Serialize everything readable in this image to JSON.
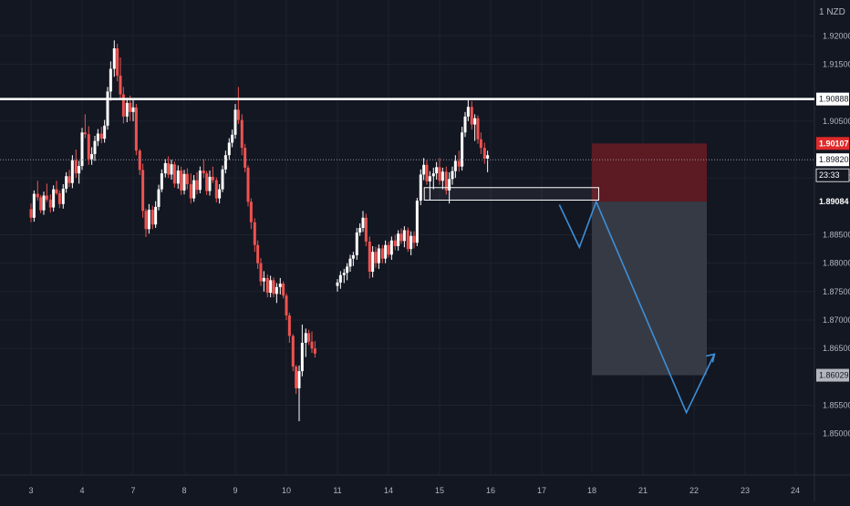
{
  "app": {
    "currency": "1 NZD"
  },
  "colors": {
    "background": "#131722",
    "grid": "#1e222d",
    "up": "#ffffff",
    "down": "#ef5350",
    "resistance_line": "#ffffff",
    "stop_zone": "#5c1a22",
    "target_zone": "#363a45",
    "projection": "#3d8fd8",
    "current_price_tag": "#ffffff",
    "stop_tag": "#e02a2a",
    "entry_tag": "#ffffff",
    "target_tag": "#b2b5be"
  },
  "chart_data": {
    "type": "candlestick",
    "title": "",
    "price_axis": {
      "ylim": [
        1.8445,
        1.9247
      ],
      "ticks": [
        "1.92000",
        "1.91500",
        "1.90500",
        "1.89500",
        "1.88500",
        "1.88000",
        "1.87500",
        "1.87000",
        "1.86500",
        "1.85500",
        "1.85000"
      ]
    },
    "time_axis": {
      "ticks": [
        "3",
        "4",
        "7",
        "8",
        "9",
        "10",
        "11",
        "14",
        "15",
        "16",
        "17",
        "18",
        "21",
        "22",
        "23",
        "24"
      ]
    },
    "grid": true,
    "legend": "none",
    "price_tags": [
      {
        "name": "resistance",
        "value": "1.90888"
      },
      {
        "name": "stop",
        "value": "1.90107"
      },
      {
        "name": "current",
        "value": "1.89820"
      },
      {
        "name": "countdown",
        "value": "23:33"
      },
      {
        "name": "entry",
        "value": "1.89084"
      },
      {
        "name": "target",
        "value": "1.86029"
      }
    ],
    "levels": {
      "resistance": 1.90888,
      "current": 1.8982,
      "stop": 1.90107,
      "entry": 1.89084,
      "target": 1.86029
    },
    "support_box": {
      "from_day": "14.7",
      "to_day": "18.4",
      "high": 1.8933,
      "low": 1.8911
    },
    "position_box": {
      "from_day": "18.0",
      "to_day": "22.25"
    },
    "projection_path": [
      {
        "day": 17.35,
        "price": 1.8903
      },
      {
        "day": 17.75,
        "price": 1.8828
      },
      {
        "day": 18.25,
        "price": 1.8908
      },
      {
        "day": 21.85,
        "price": 1.8537
      },
      {
        "day": 22.4,
        "price": 1.864
      }
    ],
    "candles": [
      [
        3.0,
        1.8895,
        1.8905,
        1.8872,
        1.888
      ],
      [
        3.06,
        1.888,
        1.8928,
        1.8873,
        1.8922
      ],
      [
        3.13,
        1.8922,
        1.8945,
        1.891,
        1.8916
      ],
      [
        3.19,
        1.8916,
        1.892,
        1.8888,
        1.8893
      ],
      [
        3.25,
        1.8893,
        1.8926,
        1.8885,
        1.8919
      ],
      [
        3.31,
        1.8919,
        1.894,
        1.8908,
        1.8912
      ],
      [
        3.38,
        1.8912,
        1.8921,
        1.8889,
        1.8898
      ],
      [
        3.44,
        1.8898,
        1.8937,
        1.8891,
        1.893
      ],
      [
        3.5,
        1.893,
        1.8945,
        1.892,
        1.8923
      ],
      [
        3.56,
        1.8923,
        1.8928,
        1.8897,
        1.8904
      ],
      [
        3.63,
        1.8904,
        1.8939,
        1.8896,
        1.8931
      ],
      [
        3.69,
        1.8931,
        1.896,
        1.8924,
        1.8953
      ],
      [
        3.75,
        1.8953,
        1.8964,
        1.8934,
        1.8941
      ],
      [
        3.81,
        1.8941,
        1.899,
        1.8932,
        1.8981
      ],
      [
        3.88,
        1.8981,
        1.9,
        1.895,
        1.8958
      ],
      [
        3.94,
        1.8958,
        1.898,
        1.894,
        1.8971
      ],
      [
        4.0,
        1.8971,
        1.9038,
        1.8964,
        1.903
      ],
      [
        4.06,
        1.903,
        1.9062,
        1.902,
        1.9027
      ],
      [
        4.13,
        1.9027,
        1.9041,
        1.8973,
        1.8983
      ],
      [
        4.19,
        1.8983,
        1.9004,
        1.8973,
        1.8992
      ],
      [
        4.25,
        1.8992,
        1.9024,
        1.898,
        1.9015
      ],
      [
        4.31,
        1.9015,
        1.9036,
        1.9006,
        1.9028
      ],
      [
        4.38,
        1.9028,
        1.904,
        1.9011,
        1.9019
      ],
      [
        4.44,
        1.9019,
        1.9052,
        1.9012,
        1.9042
      ],
      [
        4.5,
        1.9042,
        1.911,
        1.9035,
        1.9102
      ],
      [
        4.56,
        1.9102,
        1.9155,
        1.9086,
        1.9142
      ],
      [
        4.63,
        1.9142,
        1.9192,
        1.9128,
        1.9178
      ],
      [
        4.69,
        1.9178,
        1.9186,
        1.912,
        1.913
      ],
      [
        4.75,
        1.913,
        1.9162,
        1.909,
        1.9097
      ],
      [
        4.81,
        1.9097,
        1.911,
        1.9046,
        1.9058
      ],
      [
        4.88,
        1.9058,
        1.9091,
        1.9048,
        1.9082
      ],
      [
        4.94,
        1.9082,
        1.9095,
        1.905,
        1.9066
      ],
      [
        5.0,
        1.9066,
        1.909,
        1.905,
        1.9074
      ],
      [
        5.06,
        1.9074,
        1.908,
        1.899,
        1.8998
      ],
      [
        5.13,
        1.8998,
        1.9001,
        1.8955,
        1.8964
      ],
      [
        5.19,
        1.8964,
        1.8975,
        1.888,
        1.8892
      ],
      [
        5.25,
        1.8892,
        1.8896,
        1.8846,
        1.886
      ],
      [
        5.31,
        1.886,
        1.8904,
        1.8852,
        1.8894
      ],
      [
        5.38,
        1.8894,
        1.8901,
        1.886,
        1.8868
      ],
      [
        5.44,
        1.8868,
        1.8909,
        1.8862,
        1.8899
      ],
      [
        5.5,
        1.8899,
        1.8938,
        1.8893,
        1.893
      ],
      [
        5.56,
        1.893,
        1.8965,
        1.8925,
        1.8958
      ],
      [
        5.63,
        1.8958,
        1.8983,
        1.8951,
        1.8976
      ],
      [
        5.69,
        1.8976,
        1.8988,
        1.895,
        1.8956
      ],
      [
        5.75,
        1.8956,
        1.8982,
        1.8947,
        1.8974
      ],
      [
        5.81,
        1.8974,
        1.8979,
        1.8933,
        1.894
      ],
      [
        5.88,
        1.894,
        1.8972,
        1.8931,
        1.8963
      ],
      [
        5.94,
        1.8963,
        1.897,
        1.892,
        1.8928
      ],
      [
        6.0,
        1.8928,
        1.8964,
        1.8921,
        1.8957
      ],
      [
        6.06,
        1.8957,
        1.8967,
        1.893,
        1.8939
      ],
      [
        6.13,
        1.8939,
        1.8958,
        1.8905,
        1.8914
      ],
      [
        6.19,
        1.8914,
        1.8955,
        1.8908,
        1.8946
      ],
      [
        6.25,
        1.8946,
        1.896,
        1.8921,
        1.8929
      ],
      [
        6.31,
        1.8929,
        1.897,
        1.8923,
        1.8963
      ],
      [
        6.38,
        1.8963,
        1.8983,
        1.895,
        1.8958
      ],
      [
        6.44,
        1.8958,
        1.8962,
        1.892,
        1.8927
      ],
      [
        6.5,
        1.8927,
        1.8963,
        1.8919,
        1.8952
      ],
      [
        6.56,
        1.8952,
        1.897,
        1.8941,
        1.8946
      ],
      [
        6.63,
        1.8946,
        1.8951,
        1.8907,
        1.8914
      ],
      [
        6.69,
        1.8914,
        1.8939,
        1.8905,
        1.893
      ],
      [
        6.75,
        1.893,
        1.8972,
        1.8925,
        1.8965
      ],
      [
        6.81,
        1.8965,
        1.8998,
        1.8958,
        1.899
      ],
      [
        6.88,
        1.899,
        1.902,
        1.8982,
        1.9012
      ],
      [
        6.94,
        1.9012,
        1.9035,
        1.9004,
        1.9026
      ],
      [
        7.0,
        1.9026,
        1.908,
        1.9019,
        1.907
      ],
      [
        7.06,
        1.907,
        1.911,
        1.9045,
        1.9052
      ],
      [
        7.13,
        1.9052,
        1.9062,
        1.899,
        1.9003
      ],
      [
        7.19,
        1.9003,
        1.901,
        1.896,
        1.8968
      ],
      [
        7.25,
        1.8968,
        1.8972,
        1.89,
        1.8908
      ],
      [
        7.31,
        1.8908,
        1.8914,
        1.886,
        1.8872
      ],
      [
        7.38,
        1.8872,
        1.8879,
        1.882,
        1.8832
      ],
      [
        7.44,
        1.8832,
        1.884,
        1.879,
        1.88
      ],
      [
        7.5,
        1.88,
        1.8809,
        1.876,
        1.8768
      ],
      [
        7.56,
        1.8768,
        1.8786,
        1.875,
        1.8774
      ],
      [
        7.63,
        1.8774,
        1.878,
        1.874,
        1.8748
      ],
      [
        7.69,
        1.8748,
        1.8778,
        1.874,
        1.877
      ],
      [
        7.75,
        1.877,
        1.8775,
        1.874,
        1.8746
      ],
      [
        7.81,
        1.8746,
        1.8765,
        1.873,
        1.8758
      ],
      [
        7.88,
        1.8758,
        1.8774,
        1.8745,
        1.8764
      ],
      [
        7.94,
        1.8764,
        1.8768,
        1.8738,
        1.8743
      ],
      [
        8.0,
        1.8743,
        1.8747,
        1.87,
        1.8708
      ],
      [
        8.06,
        1.8708,
        1.8713,
        1.866,
        1.8672
      ],
      [
        8.13,
        1.8672,
        1.8675,
        1.861,
        1.8618
      ],
      [
        8.19,
        1.8618,
        1.8621,
        1.857,
        1.858
      ],
      [
        8.25,
        1.858,
        1.862,
        1.8522,
        1.861
      ],
      [
        8.31,
        1.861,
        1.8692,
        1.8601,
        1.866
      ],
      [
        8.38,
        1.866,
        1.8685,
        1.8635,
        1.8677
      ],
      [
        8.44,
        1.8677,
        1.8683,
        1.8656,
        1.8662
      ],
      [
        8.5,
        1.8662,
        1.868,
        1.8642,
        1.865
      ],
      [
        8.56,
        1.865,
        1.8663,
        1.8634,
        1.8641
      ],
      [
        9.0,
        1.876,
        1.8772,
        1.875,
        1.8766
      ],
      [
        9.06,
        1.8766,
        1.8786,
        1.8755,
        1.8779
      ],
      [
        9.13,
        1.8779,
        1.879,
        1.8765,
        1.8783
      ],
      [
        9.19,
        1.8783,
        1.88,
        1.877,
        1.8794
      ],
      [
        9.25,
        1.8794,
        1.8815,
        1.8785,
        1.8808
      ],
      [
        9.31,
        1.8808,
        1.882,
        1.8795,
        1.8814
      ],
      [
        9.38,
        1.8814,
        1.8862,
        1.8806,
        1.8854
      ],
      [
        9.44,
        1.8854,
        1.887,
        1.8848,
        1.8862
      ],
      [
        9.5,
        1.8862,
        1.8892,
        1.8855,
        1.888
      ],
      [
        9.56,
        1.888,
        1.8887,
        1.883,
        1.8838
      ],
      [
        9.63,
        1.8838,
        1.8847,
        1.8773,
        1.8785
      ],
      [
        9.69,
        1.8785,
        1.883,
        1.8775,
        1.882
      ],
      [
        9.75,
        1.882,
        1.8829,
        1.8792,
        1.88
      ],
      [
        9.81,
        1.88,
        1.8833,
        1.879,
        1.8826
      ],
      [
        9.88,
        1.8826,
        1.8832,
        1.88,
        1.8808
      ],
      [
        9.94,
        1.8808,
        1.884,
        1.88,
        1.8832
      ],
      [
        10.0,
        1.8832,
        1.8838,
        1.881,
        1.8815
      ],
      [
        10.06,
        1.8815,
        1.8847,
        1.8806,
        1.884
      ],
      [
        10.13,
        1.884,
        1.885,
        1.8823,
        1.883
      ],
      [
        10.19,
        1.883,
        1.8858,
        1.8822,
        1.8852
      ],
      [
        10.25,
        1.8852,
        1.8861,
        1.8834,
        1.8839
      ],
      [
        10.31,
        1.8839,
        1.8865,
        1.8828,
        1.8858
      ],
      [
        10.38,
        1.8858,
        1.8863,
        1.882,
        1.8825
      ],
      [
        10.44,
        1.8825,
        1.8856,
        1.8814,
        1.8848
      ],
      [
        10.5,
        1.8848,
        1.8856,
        1.8826,
        1.8836
      ],
      [
        10.56,
        1.8836,
        1.8915,
        1.883,
        1.891
      ],
      [
        10.63,
        1.891,
        1.8965,
        1.8902,
        1.8956
      ],
      [
        10.69,
        1.8956,
        1.8985,
        1.8946,
        1.8973
      ],
      [
        10.75,
        1.8973,
        1.8981,
        1.8938,
        1.8944
      ],
      [
        10.81,
        1.8944,
        1.8962,
        1.8911,
        1.8953
      ],
      [
        10.88,
        1.8953,
        1.8968,
        1.893,
        1.8958
      ],
      [
        10.94,
        1.8958,
        1.8978,
        1.8947,
        1.8969
      ],
      [
        11.0,
        1.8969,
        1.8985,
        1.8938,
        1.8945
      ],
      [
        11.06,
        1.8945,
        1.8968,
        1.893,
        1.8961
      ],
      [
        11.13,
        1.8961,
        1.897,
        1.8921,
        1.8928
      ],
      [
        11.19,
        1.8928,
        1.896,
        1.8905,
        1.8948
      ],
      [
        11.25,
        1.8948,
        1.897,
        1.8938,
        1.8962
      ],
      [
        11.31,
        1.8962,
        1.899,
        1.895,
        1.898
      ],
      [
        11.38,
        1.898,
        1.8998,
        1.8961,
        1.897
      ],
      [
        11.44,
        1.897,
        1.904,
        1.8963,
        1.903
      ],
      [
        11.5,
        1.903,
        1.9066,
        1.9022,
        1.9058
      ],
      [
        11.56,
        1.9058,
        1.9087,
        1.905,
        1.9075
      ],
      [
        11.63,
        1.9075,
        1.9085,
        1.9035,
        1.9044
      ],
      [
        11.69,
        1.9044,
        1.9062,
        1.9015,
        1.9055
      ],
      [
        11.75,
        1.9055,
        1.906,
        1.901,
        1.9018
      ],
      [
        11.81,
        1.9018,
        1.903,
        1.8992,
        1.9003
      ],
      [
        11.88,
        1.9003,
        1.9012,
        1.8975,
        1.8984
      ],
      [
        11.94,
        1.8984,
        1.8998,
        1.896,
        1.899
      ]
    ]
  }
}
